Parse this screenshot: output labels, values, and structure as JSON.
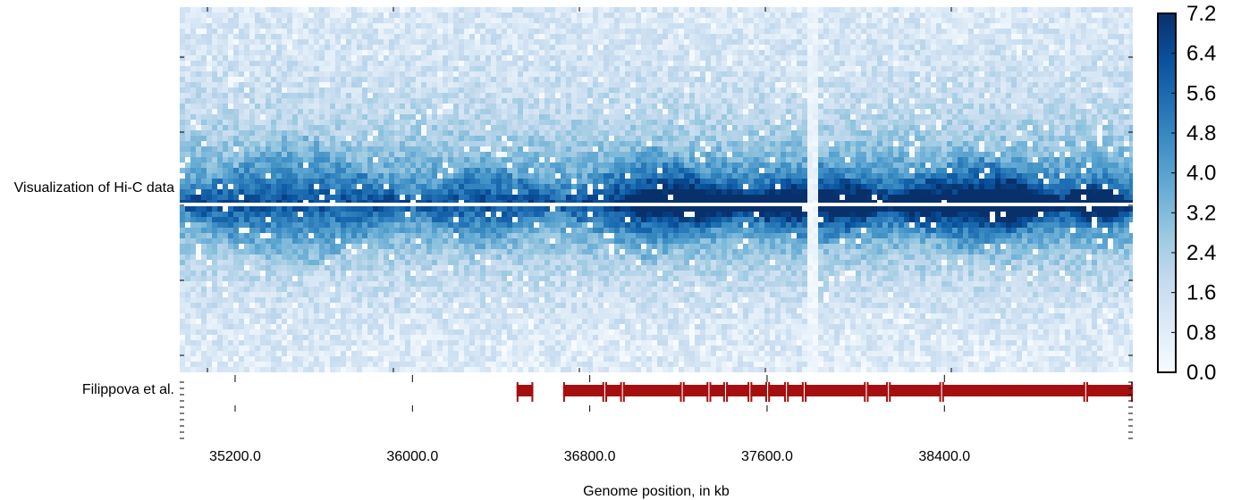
{
  "panel_labels": {
    "heatmap": "Visualization of Hi-C data",
    "track": "Filippova et al."
  },
  "chart_data": [
    {
      "type": "heatmap",
      "title": "Visualization of Hi-C data",
      "colorscale": "Blues",
      "colors": {
        "low": "#f7fbff",
        "high": "#08306b",
        "separator": "#ffffff"
      },
      "value_range": [
        0.0,
        7.2
      ],
      "colorbar": {
        "ticks": [
          0.0,
          0.8,
          1.6,
          2.4,
          3.2,
          4.0,
          4.8,
          5.6,
          6.4,
          7.2
        ],
        "tick_labels": [
          "0.0",
          "0.8",
          "1.6",
          "2.4",
          "3.2",
          "4.0",
          "4.8",
          "5.6",
          "6.4",
          "7.2"
        ]
      },
      "x_range_kb": [
        34900,
        39200
      ],
      "blocks_kb": [
        [
          34900,
          35950
        ],
        [
          35950,
          36600
        ],
        [
          36600,
          37450
        ],
        [
          37450,
          38100
        ],
        [
          38100,
          38850
        ],
        [
          38850,
          39200
        ]
      ],
      "hotspots_kb": [
        37050,
        37300,
        37620,
        37920,
        38250,
        38550,
        38700,
        39050
      ],
      "sparse_bins_kb": [
        37740,
        37755
      ]
    },
    {
      "type": "track",
      "title": "Filippova et al.",
      "color": "#a50f0f",
      "xlabel": "Genome position, in kb",
      "xlim": [
        34950,
        39250
      ],
      "xticks": [
        35200.0,
        36000.0,
        36800.0,
        37600.0,
        38400.0
      ],
      "xtick_labels": [
        "35200.0",
        "36000.0",
        "36800.0",
        "37600.0",
        "38400.0"
      ],
      "segments": [
        {
          "start": 36470,
          "end": 36545
        },
        {
          "start": 36680,
          "end": 36865
        },
        {
          "start": 36870,
          "end": 36945
        },
        {
          "start": 36950,
          "end": 37215
        },
        {
          "start": 37220,
          "end": 37335
        },
        {
          "start": 37340,
          "end": 37410
        },
        {
          "start": 37415,
          "end": 37520
        },
        {
          "start": 37525,
          "end": 37600
        },
        {
          "start": 37605,
          "end": 37685
        },
        {
          "start": 37690,
          "end": 37765
        },
        {
          "start": 37770,
          "end": 38045
        },
        {
          "start": 38050,
          "end": 38145
        },
        {
          "start": 38150,
          "end": 38385
        },
        {
          "start": 38390,
          "end": 39035
        },
        {
          "start": 39040,
          "end": 39250
        }
      ]
    }
  ]
}
